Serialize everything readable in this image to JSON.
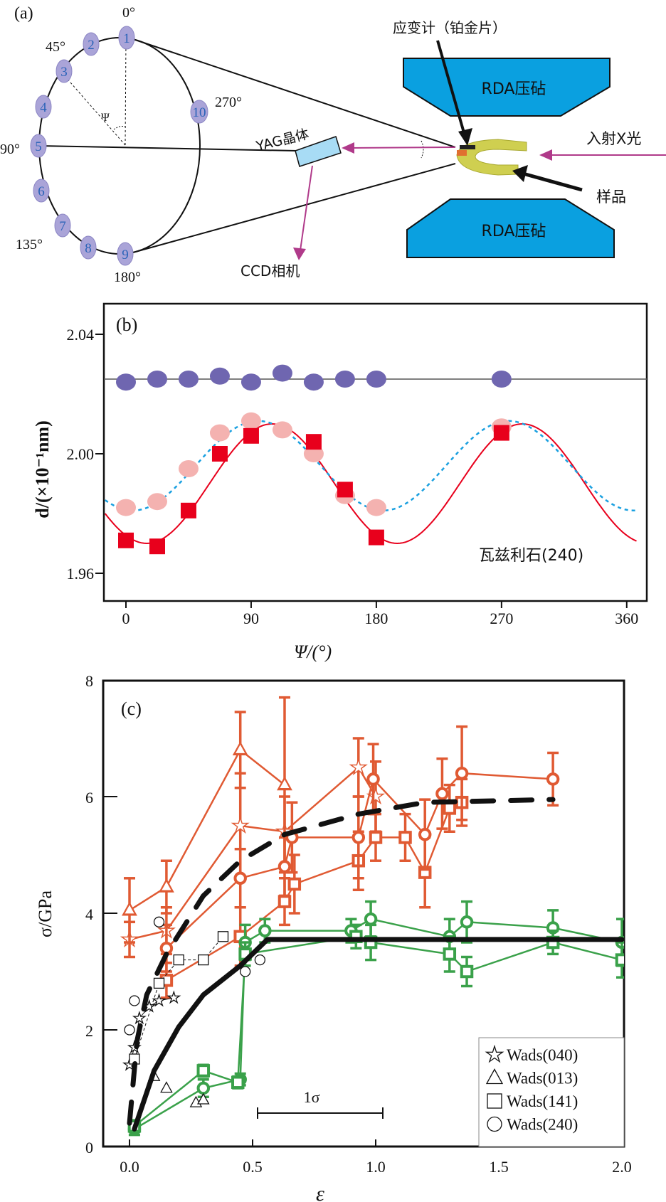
{
  "panel_a": {
    "label": "(a)",
    "angles": {
      "a0": "0°",
      "a45": "45°",
      "a90": "90°",
      "a135": "135°",
      "a180": "180°",
      "a270": "270°"
    },
    "bubbles": [
      "1",
      "2",
      "3",
      "4",
      "5",
      "6",
      "7",
      "8",
      "9",
      "10"
    ],
    "psi": "Ψ",
    "yag": "YAG晶体",
    "ccd": "CCD相机",
    "anvil_top": "RDA压砧",
    "anvil_bottom": "RDA压砧",
    "gauge": "应变计（铂金片）",
    "xray": "入射X光",
    "sample": "样品",
    "colors": {
      "anvil": "#0aa0e0",
      "bubble": "#aaa4d8",
      "yag": "#a8dcf5",
      "beam": "#b03a8a",
      "sample": "#d8d860"
    }
  },
  "chart_data": [
    {
      "id": "b",
      "type": "scatter",
      "panel_label": "(b)",
      "xlabel": "Ψ/(°)",
      "ylabel": "d/(×10⁻¹nm)",
      "annotation": "瓦兹利石(240)",
      "xlim": [
        -15,
        368
      ],
      "ylim": [
        1.951,
        2.048
      ],
      "xticks": [
        0,
        90,
        180,
        270,
        360
      ],
      "xtick_labels": [
        "0",
        "90",
        "180",
        "270",
        "360"
      ],
      "yticks": [
        1.96,
        2.0,
        2.04
      ],
      "ytick_labels": [
        "1.96",
        "2.00",
        "2.04"
      ],
      "series": [
        {
          "name": "blue-circles",
          "marker": "circle",
          "color": "#6f66b0",
          "x": [
            0,
            22.5,
            45,
            67.5,
            90,
            112.5,
            135,
            157.5,
            180,
            270
          ],
          "y": [
            2.024,
            2.025,
            2.025,
            2.026,
            2.024,
            2.027,
            2.024,
            2.025,
            2.025,
            2.025
          ]
        },
        {
          "name": "pink-circles",
          "marker": "circle",
          "color": "#f4b2b0",
          "x": [
            0,
            22.5,
            45,
            67.5,
            90,
            112.5,
            135,
            157.5,
            180,
            270
          ],
          "y": [
            1.982,
            1.984,
            1.995,
            2.007,
            2.011,
            2.008,
            2.0,
            1.986,
            1.982,
            2.009
          ]
        },
        {
          "name": "red-squares",
          "marker": "square",
          "color": "#e8001c",
          "x": [
            0,
            22.5,
            45,
            67.5,
            90,
            135,
            157.5,
            180,
            270
          ],
          "y": [
            1.971,
            1.969,
            1.981,
            2.0,
            2.006,
            2.004,
            1.988,
            1.972,
            2.007
          ]
        }
      ],
      "reference_line": {
        "y": 2.025,
        "color": "#555555"
      },
      "fits": [
        {
          "name": "red-fit",
          "style": "solid",
          "color": "#e8001c",
          "mean": 1.99,
          "amplitude": 0.02,
          "phase_deg": 105
        },
        {
          "name": "blue-fit",
          "style": "dotted",
          "color": "#1aa0e0",
          "mean": 1.996,
          "amplitude": 0.015,
          "phase_deg": 95
        }
      ]
    },
    {
      "id": "c",
      "type": "line",
      "panel_label": "(c)",
      "xlabel": "ε",
      "ylabel": "σ/GPa",
      "xlim": [
        -0.1,
        2.0
      ],
      "ylim": [
        0,
        8
      ],
      "xticks": [
        0.0,
        0.5,
        1.0,
        1.5,
        2.0
      ],
      "xtick_labels": [
        "0.0",
        "0.5",
        "1.0",
        "1.5",
        "2.0"
      ],
      "yticks": [
        0,
        2,
        4,
        6,
        8
      ],
      "ytick_labels": [
        "0",
        "2",
        "4",
        "6",
        "8"
      ],
      "scale_bar_label": "1σ",
      "legend": {
        "position": "bottom-right",
        "entries": [
          {
            "marker": "star",
            "label": "Wads(040)"
          },
          {
            "marker": "triangle",
            "label": "Wads(013)"
          },
          {
            "marker": "square",
            "label": "Wads(141)"
          },
          {
            "marker": "circle",
            "label": "Wads(240)"
          }
        ]
      },
      "series": [
        {
          "name": "red-040",
          "marker": "star",
          "color": "#e05a33",
          "points": [
            [
              0.0,
              3.55,
              0.3
            ],
            [
              0.15,
              3.7,
              0.4
            ],
            [
              0.45,
              5.5,
              0.9
            ],
            [
              0.63,
              5.4,
              0.6
            ],
            [
              0.93,
              6.5,
              0.5
            ],
            [
              1.0,
              6.0,
              0.6
            ]
          ]
        },
        {
          "name": "red-013",
          "marker": "triangle",
          "color": "#e05a33",
          "points": [
            [
              0.0,
              4.05,
              0.55
            ],
            [
              0.15,
              4.45,
              0.45
            ],
            [
              0.45,
              6.8,
              0.65
            ],
            [
              0.63,
              6.2,
              1.5
            ]
          ]
        },
        {
          "name": "red-141",
          "marker": "square",
          "color": "#e05a33",
          "points": [
            [
              0.15,
              2.85,
              0.3
            ],
            [
              0.45,
              3.6,
              0.5
            ],
            [
              0.63,
              4.2,
              0.4
            ],
            [
              0.67,
              4.5,
              0.5
            ],
            [
              0.93,
              4.9,
              0.5
            ],
            [
              1.0,
              5.3,
              0.4
            ],
            [
              1.12,
              5.3,
              0.4
            ],
            [
              1.2,
              4.7,
              0.6
            ],
            [
              1.3,
              5.8,
              0.4
            ],
            [
              1.35,
              5.9,
              0.4
            ]
          ]
        },
        {
          "name": "red-240",
          "marker": "circle",
          "color": "#e05a33",
          "points": [
            [
              0.15,
              3.4,
              0.4
            ],
            [
              0.45,
              4.6,
              0.5
            ],
            [
              0.63,
              4.8,
              0.5
            ],
            [
              0.66,
              5.3,
              0.6
            ],
            [
              0.93,
              5.3,
              0.7
            ],
            [
              0.99,
              6.3,
              0.6
            ],
            [
              1.2,
              5.35,
              0.6
            ],
            [
              1.27,
              6.05,
              0.6
            ],
            [
              1.35,
              6.4,
              0.8
            ],
            [
              1.72,
              6.3,
              0.45
            ]
          ]
        },
        {
          "name": "green-240",
          "marker": "circle",
          "color": "#3aa14a",
          "points": [
            [
              0.02,
              0.3,
              0.1
            ],
            [
              0.3,
              1.0,
              0.15
            ],
            [
              0.45,
              1.15,
              0.1
            ],
            [
              0.47,
              3.5,
              0.3
            ],
            [
              0.55,
              3.7,
              0.2
            ],
            [
              0.9,
              3.7,
              0.2
            ],
            [
              0.98,
              3.9,
              0.3
            ],
            [
              1.3,
              3.6,
              0.3
            ],
            [
              1.37,
              3.85,
              0.35
            ],
            [
              1.72,
              3.75,
              0.3
            ],
            [
              2.0,
              3.5,
              0.4
            ]
          ]
        },
        {
          "name": "green-141",
          "marker": "square",
          "color": "#3aa14a",
          "points": [
            [
              0.02,
              0.35,
              0.1
            ],
            [
              0.3,
              1.3,
              0.1
            ],
            [
              0.44,
              1.1,
              0.1
            ],
            [
              0.47,
              3.3,
              0.2
            ],
            [
              0.92,
              3.6,
              0.2
            ],
            [
              0.98,
              3.5,
              0.3
            ],
            [
              1.3,
              3.3,
              0.3
            ],
            [
              1.37,
              3.0,
              0.25
            ],
            [
              1.72,
              3.5,
              0.2
            ],
            [
              2.0,
              3.2,
              0.3
            ]
          ]
        },
        {
          "name": "black-stars",
          "marker": "star",
          "color": "#111111",
          "open": true,
          "points": [
            [
              0.0,
              1.4,
              0
            ],
            [
              0.02,
              1.7,
              0
            ],
            [
              0.04,
              2.2,
              0
            ],
            [
              0.08,
              2.4,
              0
            ],
            [
              0.12,
              2.5,
              0
            ],
            [
              0.18,
              2.55,
              0
            ]
          ]
        },
        {
          "name": "black-triangles",
          "marker": "triangle",
          "color": "#111111",
          "open": true,
          "line": false,
          "points": [
            [
              0.1,
              1.2,
              0
            ],
            [
              0.15,
              1.0,
              0
            ],
            [
              0.27,
              0.75,
              0
            ],
            [
              0.3,
              0.8,
              0
            ]
          ]
        },
        {
          "name": "black-squares",
          "marker": "square",
          "color": "#111111",
          "open": true,
          "points": [
            [
              0.02,
              1.5,
              0
            ],
            [
              0.12,
              2.8,
              0
            ],
            [
              0.2,
              3.2,
              0
            ],
            [
              0.3,
              3.2,
              0
            ],
            [
              0.38,
              3.6,
              0
            ]
          ]
        },
        {
          "name": "black-circles",
          "marker": "circle",
          "color": "#111111",
          "open": true,
          "line": false,
          "points": [
            [
              0.0,
              2.0,
              0
            ],
            [
              0.02,
              2.5,
              0
            ],
            [
              0.12,
              3.85,
              0
            ],
            [
              0.47,
              3.0,
              0
            ],
            [
              0.53,
              3.2,
              0
            ]
          ]
        }
      ],
      "curves": [
        {
          "name": "dashed-fit",
          "style": "dashed",
          "color": "#111111",
          "points": [
            [
              0.0,
              0.4
            ],
            [
              0.03,
              1.8
            ],
            [
              0.07,
              2.6
            ],
            [
              0.15,
              3.3
            ],
            [
              0.3,
              4.3
            ],
            [
              0.45,
              4.9
            ],
            [
              0.63,
              5.35
            ],
            [
              0.93,
              5.7
            ],
            [
              1.2,
              5.9
            ],
            [
              1.72,
              5.95
            ]
          ]
        },
        {
          "name": "solid-fit",
          "style": "solid",
          "color": "#111111",
          "points": [
            [
              0.02,
              0.3
            ],
            [
              0.1,
              1.3
            ],
            [
              0.2,
              2.05
            ],
            [
              0.3,
              2.6
            ],
            [
              0.45,
              3.1
            ],
            [
              0.56,
              3.55
            ],
            [
              2.0,
              3.55
            ]
          ]
        }
      ]
    }
  ]
}
